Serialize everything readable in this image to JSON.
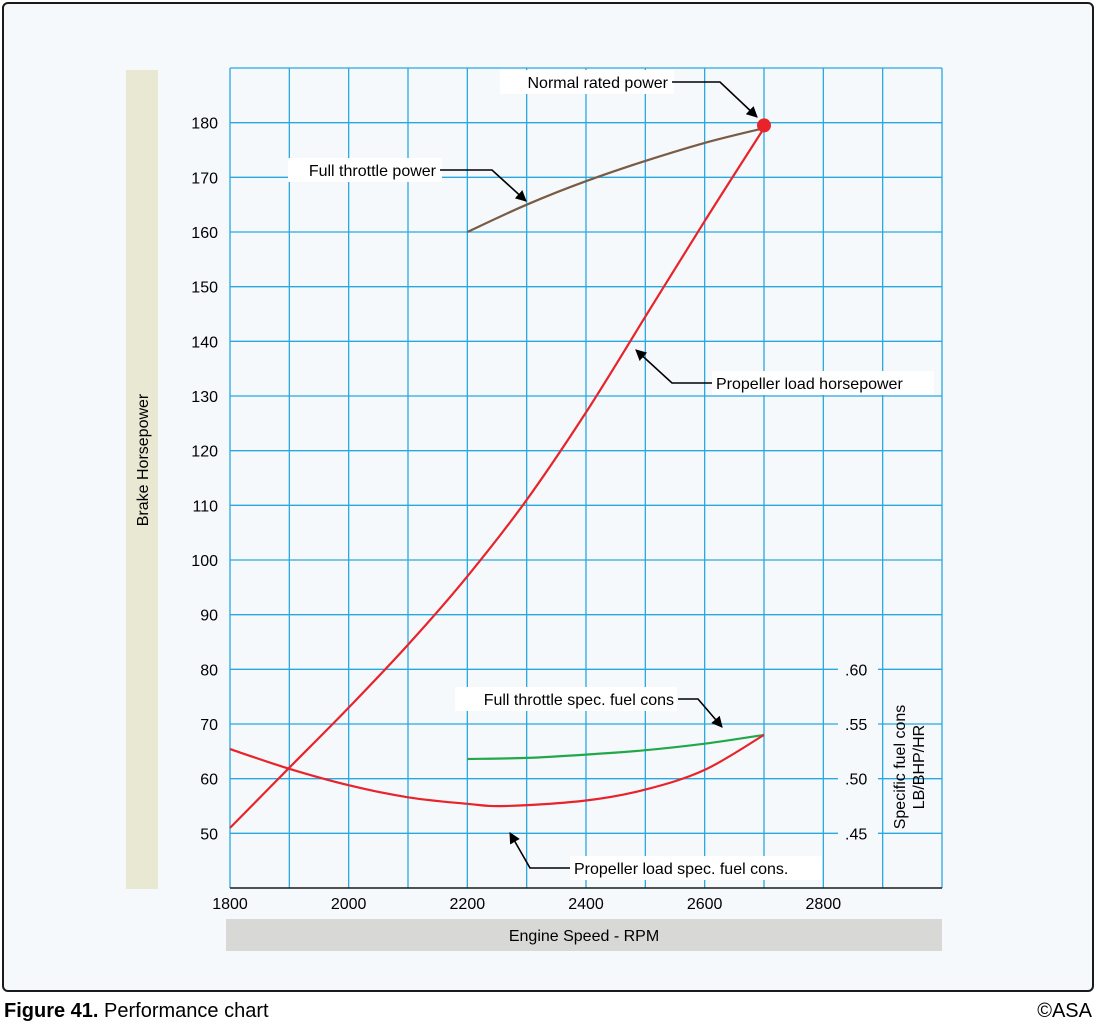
{
  "chart_data": {
    "type": "line",
    "title": "Performance chart",
    "xlabel": "Engine Speed - RPM",
    "ylabel": "Brake Horsepower",
    "y2label_line1": "Specific fuel cons",
    "y2label_line2": "LB/BHP/HR",
    "xlim": [
      1800,
      3000
    ],
    "ylim": [
      40,
      190
    ],
    "x_ticks": [
      1800,
      2000,
      2200,
      2400,
      2600,
      2800
    ],
    "x_tick_labels": [
      "1800",
      "2000",
      "2200",
      "2400",
      "2600",
      "2800"
    ],
    "y_ticks": [
      50,
      60,
      70,
      80,
      90,
      100,
      110,
      120,
      130,
      140,
      150,
      160,
      170,
      180
    ],
    "y_tick_labels": [
      "50",
      "60",
      "70",
      "80",
      "90",
      "100",
      "110",
      "120",
      "130",
      "140",
      "150",
      "160",
      "170",
      "180"
    ],
    "y2_ticks": [
      0.45,
      0.5,
      0.55,
      0.6
    ],
    "y2_tick_labels": [
      ".45",
      ".50",
      ".55",
      ".60"
    ],
    "y2_range": [
      0.45,
      0.6
    ],
    "grid": true,
    "grid_color": "#29a8e0",
    "series": [
      {
        "name": "Full throttle power",
        "axis": "left",
        "color": "#7a5c44",
        "x": [
          2200,
          2300,
          2400,
          2500,
          2600,
          2700
        ],
        "y": [
          160,
          165,
          169.3,
          173,
          176.3,
          179
        ]
      },
      {
        "name": "Propeller load horsepower",
        "axis": "left",
        "color": "#e8232a",
        "x": [
          1800,
          1900,
          2000,
          2100,
          2200,
          2300,
          2400,
          2500,
          2600,
          2700
        ],
        "y": [
          51,
          62,
          73,
          84.5,
          97,
          111,
          127,
          144.5,
          162,
          179
        ]
      },
      {
        "name": "Full throttle spec. fuel cons",
        "axis": "right",
        "color": "#22a84a",
        "x": [
          2200,
          2300,
          2400,
          2500,
          2600,
          2700
        ],
        "y": [
          0.518,
          0.519,
          0.522,
          0.526,
          0.532,
          0.54
        ]
      },
      {
        "name": "Propeller load spec. fuel cons.",
        "axis": "right",
        "color": "#e8232a",
        "x": [
          1800,
          1900,
          2000,
          2100,
          2200,
          2265,
          2400,
          2500,
          2600,
          2700
        ],
        "y": [
          0.527,
          0.509,
          0.494,
          0.483,
          0.477,
          0.475,
          0.48,
          0.49,
          0.508,
          0.54
        ]
      }
    ],
    "annotations": [
      {
        "text": "Normal rated power",
        "x": 2700,
        "y": 179
      },
      {
        "text": "Full throttle power",
        "x": 2300,
        "y": 165
      },
      {
        "text": "Propeller load horsepower",
        "x": 2470,
        "y": 138
      },
      {
        "text": "Full throttle spec. fuel cons",
        "x": 2640,
        "y": 0.535
      },
      {
        "text": "Propeller load spec. fuel cons.",
        "x": 2280,
        "y": 0.475
      }
    ]
  },
  "caption": {
    "figure": "Figure 41.",
    "text": "Performance chart"
  },
  "copyright": "©ASA",
  "colors": {
    "grid": "#29a8e0",
    "ylabel_band": "#e9e8d2",
    "xlabel_band": "#d8d8d6",
    "marker": "#e8232a"
  }
}
